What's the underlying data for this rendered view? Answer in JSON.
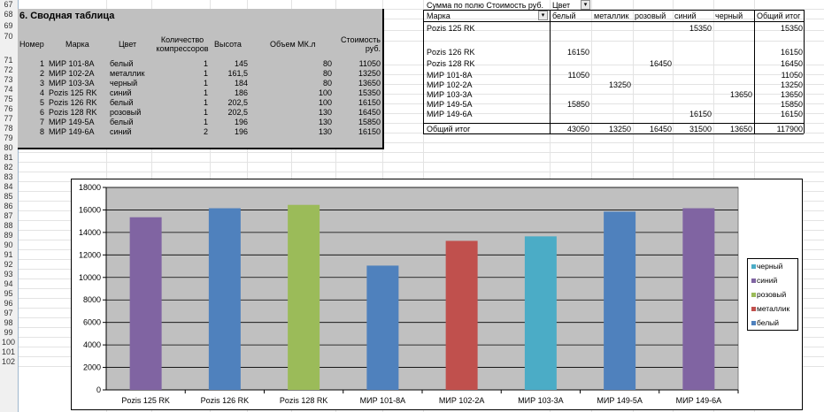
{
  "row_numbers": [
    "67",
    "68",
    "69",
    "70",
    "71",
    "72",
    "73",
    "74",
    "75",
    "76",
    "77",
    "78",
    "79",
    "80",
    "81",
    "82",
    "83",
    "84",
    "85",
    "86",
    "87",
    "88",
    "89",
    "90",
    "91",
    "92",
    "93",
    "94",
    "95",
    "96",
    "97",
    "98",
    "99",
    "100",
    "101",
    "102"
  ],
  "left_table": {
    "title": "6. Сводная таблица",
    "headers": {
      "num": "Номер",
      "mark": "Марка",
      "color": "Цвет",
      "compressors": "Количество компрессоров",
      "height": "Высота",
      "volume": "Объем МК.л",
      "cost": "Стоимость руб."
    },
    "rows": [
      {
        "num": "1",
        "mark": "МИР 101-8А",
        "color": "белый",
        "comp": "1",
        "height": "145",
        "volume": "80",
        "cost": "11050"
      },
      {
        "num": "2",
        "mark": "МИР 102-2А",
        "color": "металлик",
        "comp": "1",
        "height": "161,5",
        "volume": "80",
        "cost": "13250"
      },
      {
        "num": "3",
        "mark": "МИР 103-3А",
        "color": "черный",
        "comp": "1",
        "height": "184",
        "volume": "80",
        "cost": "13650"
      },
      {
        "num": "4",
        "mark": "Pozis 125 RK",
        "color": "синий",
        "comp": "1",
        "height": "186",
        "volume": "100",
        "cost": "15350"
      },
      {
        "num": "5",
        "mark": "Pozis 126 RK",
        "color": "белый",
        "comp": "1",
        "height": "202,5",
        "volume": "100",
        "cost": "16150"
      },
      {
        "num": "6",
        "mark": "Pozis 128 RK",
        "color": "розовый",
        "comp": "1",
        "height": "202,5",
        "volume": "130",
        "cost": "16450"
      },
      {
        "num": "7",
        "mark": "МИР 149-5А",
        "color": "белый",
        "comp": "1",
        "height": "196",
        "volume": "130",
        "cost": "15850"
      },
      {
        "num": "8",
        "mark": "МИР 149-6А",
        "color": "синий",
        "comp": "2",
        "height": "196",
        "volume": "130",
        "cost": "16150"
      }
    ]
  },
  "pivot": {
    "sum_label": "Сумма по полю Стоимость руб.",
    "col_field": "Цвет",
    "row_field": "Марка",
    "columns": [
      "белый",
      "металлик",
      "розовый",
      "синий",
      "черный",
      "Общий итог"
    ],
    "rows": [
      {
        "mark": "Pozis 125 RK",
        "vals": [
          "",
          "",
          "",
          "15350",
          "",
          "15350"
        ]
      },
      {
        "mark": "Pozis 126 RK",
        "vals": [
          "16150",
          "",
          "",
          "",
          "",
          "16150"
        ]
      },
      {
        "mark": "Pozis 128 RK",
        "vals": [
          "",
          "",
          "16450",
          "",
          "",
          "16450"
        ]
      },
      {
        "mark": "МИР 101-8А",
        "vals": [
          "11050",
          "",
          "",
          "",
          "",
          "11050"
        ]
      },
      {
        "mark": "МИР 102-2А",
        "vals": [
          "",
          "13250",
          "",
          "",
          "",
          "13250"
        ]
      },
      {
        "mark": "МИР 103-3А",
        "vals": [
          "",
          "",
          "",
          "",
          "13650",
          "13650"
        ]
      },
      {
        "mark": "МИР 149-5А",
        "vals": [
          "15850",
          "",
          "",
          "",
          "",
          "15850"
        ]
      },
      {
        "mark": "МИР 149-6А",
        "vals": [
          "",
          "",
          "",
          "16150",
          "",
          "16150"
        ]
      }
    ],
    "total_label": "Общий итог",
    "totals": [
      "43050",
      "13250",
      "16450",
      "31500",
      "13650",
      "117900"
    ]
  },
  "colors": {
    "plot_bg": "#c0c0c0",
    "белый": "#4f81bd",
    "металлик": "#c0504d",
    "розовый": "#9bbb59",
    "синий": "#8064a2",
    "черный": "#4bacc6"
  },
  "chart_data": {
    "type": "bar",
    "stacked": true,
    "categories": [
      "Pozis 125 RK",
      "Pozis 126 RK",
      "Pozis 128 RK",
      "МИР 101-8А",
      "МИР 102-2А",
      "МИР 103-3А",
      "МИР 149-5А",
      "МИР 149-6А"
    ],
    "series": [
      {
        "name": "белый",
        "values": [
          0,
          16150,
          0,
          11050,
          0,
          0,
          15850,
          0
        ]
      },
      {
        "name": "металлик",
        "values": [
          0,
          0,
          0,
          0,
          13250,
          0,
          0,
          0
        ]
      },
      {
        "name": "розовый",
        "values": [
          0,
          0,
          16450,
          0,
          0,
          0,
          0,
          0
        ]
      },
      {
        "name": "синий",
        "values": [
          15350,
          0,
          0,
          0,
          0,
          0,
          0,
          16150
        ]
      },
      {
        "name": "черный",
        "values": [
          0,
          0,
          0,
          0,
          0,
          13650,
          0,
          0
        ]
      }
    ],
    "legend_order": [
      "черный",
      "синий",
      "розовый",
      "металлик",
      "белый"
    ],
    "yticks": [
      "0",
      "2000",
      "4000",
      "6000",
      "8000",
      "10000",
      "12000",
      "14000",
      "16000",
      "18000"
    ],
    "ylim": [
      0,
      18000
    ],
    "grid": true,
    "legend_position": "right"
  }
}
